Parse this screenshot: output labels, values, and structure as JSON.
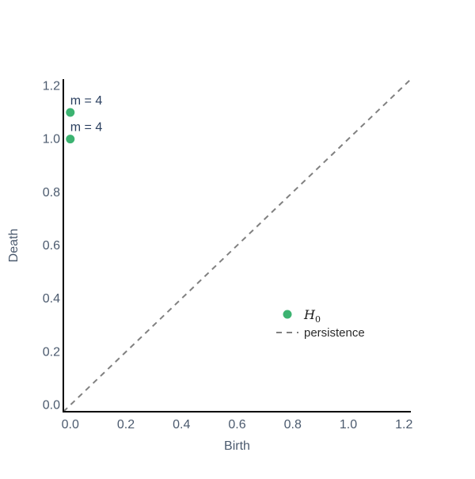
{
  "chart_data": {
    "type": "scatter",
    "xlabel": "Birth",
    "ylabel": "Death",
    "xlim": [
      -0.025,
      1.225
    ],
    "ylim": [
      -0.025,
      1.225
    ],
    "x_ticks": [
      "0.0",
      "0.2",
      "0.4",
      "0.6",
      "0.8",
      "1.0",
      "1.2"
    ],
    "y_ticks": [
      "0.0",
      "0.2",
      "0.4",
      "0.6",
      "0.8",
      "1.0",
      "1.2"
    ],
    "grid": false,
    "legend_position": "lower-right",
    "series": [
      {
        "name": "H",
        "name_subscript": "0",
        "color": "#3cb371",
        "points": [
          {
            "x": 0.0,
            "y": 1.1,
            "label": "m = 4"
          },
          {
            "x": 0.0,
            "y": 1.0,
            "label": "m = 4"
          }
        ]
      }
    ],
    "diagonal": {
      "name": "persistence",
      "color": "#808080",
      "style": "dashed",
      "from": [
        -0.025,
        -0.025
      ],
      "to": [
        1.225,
        1.225
      ]
    }
  }
}
